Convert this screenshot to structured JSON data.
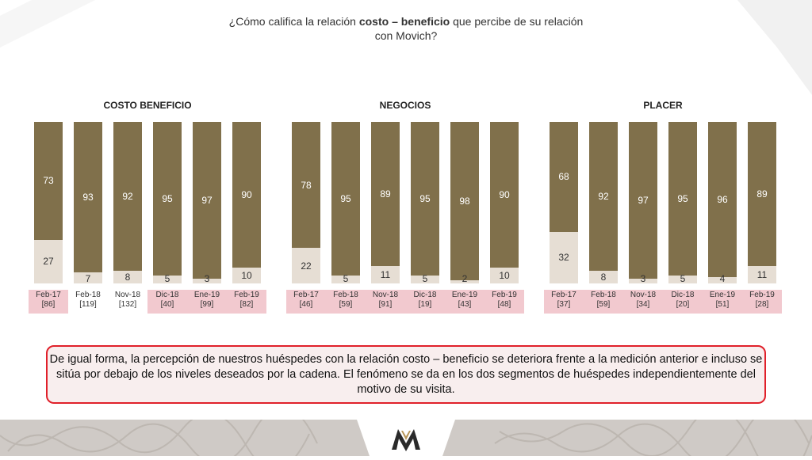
{
  "question": {
    "pre": "¿Cómo califica la relación ",
    "bold": "costo – beneficio",
    "post": " que percibe de su relación",
    "line2": "con Movich?"
  },
  "note": "De igual forma, la percepción de nuestros huéspedes con la relación costo – beneficio se deteriora frente a la medición anterior e incluso se sitúa por debajo de los niveles deseados por la cadena. El fenómeno se da en los dos segmentos de huéspedes independientemente del motivo de su visita.",
  "logo": {
    "brand": "Movich"
  },
  "colors": {
    "top": "#80704b",
    "bottom": "#e6ded4",
    "highlight": "#f2c9cf",
    "note_border": "#e0202a"
  },
  "chart_data": [
    {
      "type": "bar",
      "stacked": true,
      "title": "COSTO BENEFICIO",
      "categories": [
        "Feb-17",
        "Feb-18",
        "Nov-18",
        "Dic-18",
        "Ene-19",
        "Feb-19"
      ],
      "bases": [
        "[86]",
        "[119]",
        "[132]",
        "[40]",
        "[99]",
        "[82]"
      ],
      "highlighted": [
        true,
        false,
        false,
        true,
        true,
        true
      ],
      "series": [
        {
          "values": [
            73,
            93,
            92,
            95,
            97,
            90
          ]
        },
        {
          "values": [
            27,
            7,
            8,
            5,
            3,
            10
          ]
        }
      ],
      "ylim": [
        0,
        100
      ]
    },
    {
      "type": "bar",
      "stacked": true,
      "title": "NEGOCIOS",
      "categories": [
        "Feb-17",
        "Feb-18",
        "Nov-18",
        "Dic-18",
        "Ene-19",
        "Feb-19"
      ],
      "bases": [
        "[46]",
        "[59]",
        "[91]",
        "[19]",
        "[43]",
        "[48]"
      ],
      "highlighted": [
        true,
        true,
        true,
        true,
        true,
        true
      ],
      "series": [
        {
          "values": [
            78,
            95,
            89,
            95,
            98,
            90
          ]
        },
        {
          "values": [
            22,
            5,
            11,
            5,
            2,
            10
          ]
        }
      ],
      "ylim": [
        0,
        100
      ]
    },
    {
      "type": "bar",
      "stacked": true,
      "title": "PLACER",
      "categories": [
        "Feb-17",
        "Feb-18",
        "Nov-18",
        "Dic-18",
        "Ene-19",
        "Feb-19"
      ],
      "bases": [
        "[37]",
        "[59]",
        "[34]",
        "[20]",
        "[51]",
        "[28]"
      ],
      "highlighted": [
        true,
        true,
        true,
        true,
        true,
        true
      ],
      "series": [
        {
          "values": [
            68,
            92,
            97,
            95,
            96,
            89
          ]
        },
        {
          "values": [
            32,
            8,
            3,
            5,
            4,
            11
          ]
        }
      ],
      "ylim": [
        0,
        100
      ]
    }
  ]
}
